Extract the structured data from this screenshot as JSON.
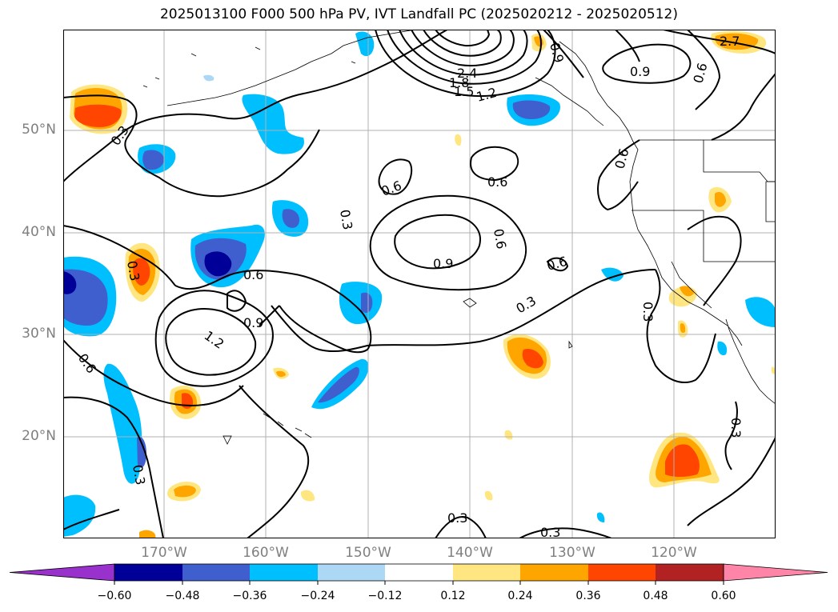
{
  "title": "2025013100 F000 500 hPa PV, IVT Landfall PC (2025020212 - 2025020512)",
  "map": {
    "type": "geographic map, contour + filled contour",
    "region": "North Pacific / West Coast of North America",
    "lat_ticks": [
      "50°N",
      "40°N",
      "30°N",
      "20°N"
    ],
    "lon_ticks": [
      "170°W",
      "160°W",
      "150°W",
      "140°W",
      "130°W",
      "120°W"
    ],
    "gridlines": true,
    "contour_labels": [
      "0.3",
      "0.3",
      "0.3",
      "0.3",
      "0.3",
      "0.3",
      "0.3",
      "0.3",
      "0.3",
      "0.6",
      "0.6",
      "0.6",
      "0.6",
      "0.6",
      "0.6",
      "0.6",
      "0.6",
      "0.9",
      "0.9",
      "0.9",
      "0.9",
      "1.2",
      "1.2",
      "1.5",
      "1.8",
      "2.4",
      "2.7"
    ],
    "fill_colors": {
      "neg_060": "#9932cc",
      "neg_048": "#000099",
      "neg_036": "#3f5fcf",
      "neg_024": "#00bfff",
      "neg_012": "#add8f5",
      "zero": "#ffffff",
      "pos_012": "#ffe680",
      "pos_024": "#ffa500",
      "pos_036": "#ff4500",
      "pos_048": "#b22222",
      "pos_060": "#ff85a8"
    }
  },
  "colorbar": {
    "ticks": [
      "−0.60",
      "−0.48",
      "−0.36",
      "−0.24",
      "−0.12",
      "0.12",
      "0.24",
      "0.36",
      "0.48",
      "0.60"
    ],
    "colors": [
      "#9932cc",
      "#000099",
      "#3f5fcf",
      "#00bfff",
      "#add8f5",
      "#ffffff",
      "#ffe680",
      "#ffa500",
      "#ff4500",
      "#b22222",
      "#ff85a8"
    ]
  }
}
